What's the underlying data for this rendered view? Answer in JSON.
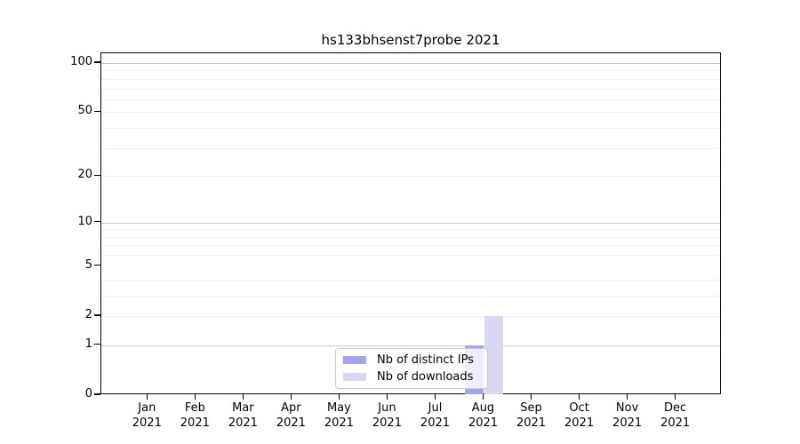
{
  "chart_data": {
    "type": "bar",
    "title": "hs133bhsenst7probe 2021",
    "x_year": "2021",
    "months": [
      "Jan",
      "Feb",
      "Mar",
      "Apr",
      "May",
      "Jun",
      "Jul",
      "Aug",
      "Sep",
      "Oct",
      "Nov",
      "Dec"
    ],
    "series": [
      {
        "name": "Nb of distinct IPs",
        "color": "#a5a5ee",
        "values": [
          0,
          0,
          0,
          0,
          0,
          0,
          0,
          1,
          0,
          0,
          0,
          0
        ]
      },
      {
        "name": "Nb of downloads",
        "color": "#d9d9f6",
        "values": [
          0,
          0,
          0,
          0,
          0,
          0,
          0,
          2,
          0,
          0,
          0,
          0
        ]
      }
    ],
    "y_axis": {
      "scale": "log1p",
      "ticks": [
        0,
        1,
        2,
        5,
        10,
        20,
        50,
        100
      ],
      "major_gridlines": [
        1,
        10,
        100
      ],
      "minor_gridlines": [
        2,
        3,
        4,
        6,
        7,
        8,
        9,
        20,
        30,
        40,
        50,
        60,
        70,
        80,
        90
      ],
      "range_top": 115
    },
    "legend": {
      "position": "inside-bottom-center",
      "border_color": "#cccccc",
      "background": "rgba(255,255,255,0.8)"
    },
    "colors": {
      "major_grid": "#c9c9c9",
      "minor_grid": "#f0f0f0",
      "spine": "#000000",
      "text": "#000000"
    }
  }
}
